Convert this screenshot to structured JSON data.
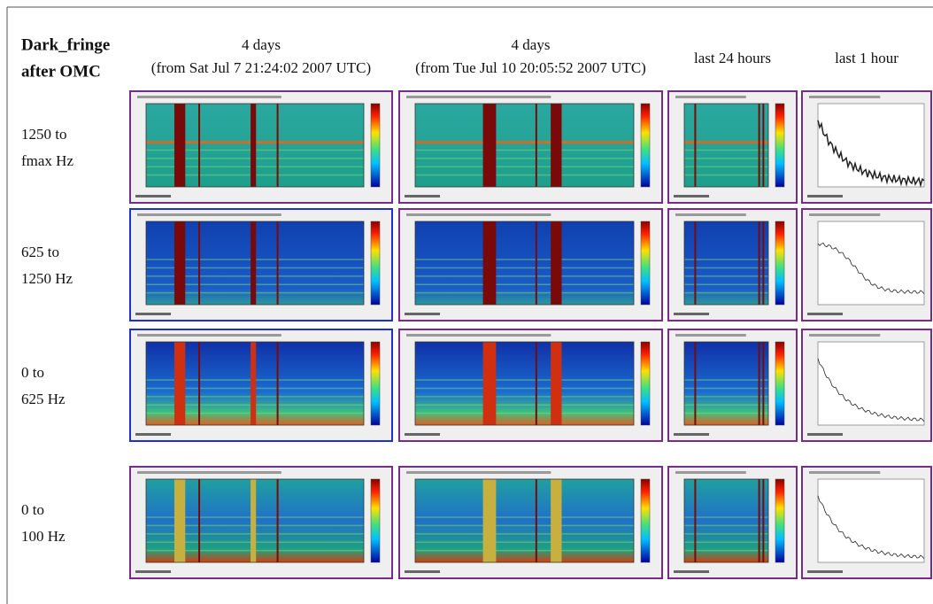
{
  "header": {
    "title": [
      "Dark_fringe",
      "after OMC"
    ],
    "columns": [
      [
        "4 days",
        "(from Sat Jul 7 21:24:02 2007 UTC)"
      ],
      [
        "4 days",
        "(from Tue Jul 10 20:05:52 2007 UTC)"
      ],
      [
        "last 24 hours"
      ],
      [
        "last 1 hour"
      ]
    ]
  },
  "rows": [
    {
      "label": [
        "1250 to",
        "fmax Hz"
      ]
    },
    {
      "label": [
        "625 to",
        "1250 Hz"
      ]
    },
    {
      "label": [
        "0 to",
        "625 Hz"
      ]
    },
    {
      "label": [
        "0 to",
        "100 Hz"
      ]
    }
  ]
}
